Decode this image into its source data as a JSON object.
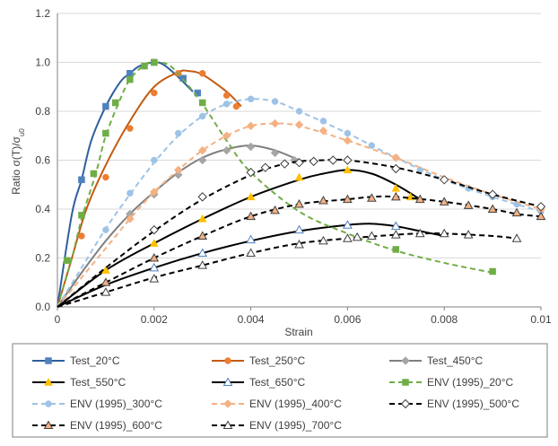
{
  "chart_data": {
    "type": "line",
    "xlabel": "Strain",
    "ylabel": "Ratio σ(T)/σu0",
    "xlim": [
      0,
      0.01
    ],
    "ylim": [
      0,
      1.2
    ],
    "x_ticks": [
      "0",
      "0.002",
      "0.004",
      "0.006",
      "0.008",
      "0.01"
    ],
    "y_ticks": [
      "0.0",
      "0.2",
      "0.4",
      "0.6",
      "0.8",
      "1.0",
      "1.2"
    ],
    "grid": "horizontal",
    "legend_position": "bottom",
    "series": [
      {
        "name": "Test_20°C",
        "color": "#2f5f9e",
        "dash": "solid",
        "marker": "square",
        "marker_fill": "#4f81bd",
        "points": [
          [
            0,
            0
          ],
          [
            0.0003,
            0.38
          ],
          [
            0.0005,
            0.52
          ],
          [
            0.0007,
            0.68
          ],
          [
            0.001,
            0.82
          ],
          [
            0.0013,
            0.92
          ],
          [
            0.0015,
            0.955
          ],
          [
            0.0017,
            0.985
          ],
          [
            0.002,
            1.0
          ],
          [
            0.0022,
            0.99
          ],
          [
            0.0025,
            0.94
          ],
          [
            0.0028,
            0.88
          ]
        ],
        "markers": [
          [
            0.0005,
            0.52
          ],
          [
            0.001,
            0.82
          ],
          [
            0.0015,
            0.955
          ],
          [
            0.002,
            1.0
          ],
          [
            0.0026,
            0.935
          ],
          [
            0.0029,
            0.875
          ]
        ]
      },
      {
        "name": "Test_250°C",
        "color": "#c55a11",
        "dash": "solid",
        "marker": "circle",
        "marker_fill": "#ed7d31",
        "points": [
          [
            0,
            0
          ],
          [
            0.0003,
            0.2
          ],
          [
            0.0006,
            0.4
          ],
          [
            0.001,
            0.58
          ],
          [
            0.0015,
            0.76
          ],
          [
            0.002,
            0.9
          ],
          [
            0.0025,
            0.96
          ],
          [
            0.0027,
            0.965
          ],
          [
            0.003,
            0.95
          ],
          [
            0.0035,
            0.88
          ],
          [
            0.0038,
            0.82
          ]
        ],
        "markers": [
          [
            0.0005,
            0.29
          ],
          [
            0.001,
            0.53
          ],
          [
            0.0015,
            0.73
          ],
          [
            0.002,
            0.875
          ],
          [
            0.0025,
            0.955
          ],
          [
            0.003,
            0.955
          ],
          [
            0.0035,
            0.865
          ],
          [
            0.0037,
            0.82
          ]
        ]
      },
      {
        "name": "Test_450°C",
        "color": "#7f7f7f",
        "dash": "solid",
        "marker": "diamond",
        "marker_fill": "#a5a5a5",
        "points": [
          [
            0,
            0
          ],
          [
            0.0005,
            0.14
          ],
          [
            0.001,
            0.27
          ],
          [
            0.0015,
            0.38
          ],
          [
            0.002,
            0.47
          ],
          [
            0.0025,
            0.55
          ],
          [
            0.003,
            0.61
          ],
          [
            0.0035,
            0.645
          ],
          [
            0.004,
            0.66
          ],
          [
            0.0045,
            0.64
          ],
          [
            0.005,
            0.6
          ]
        ],
        "markers": [
          [
            0.0015,
            0.38
          ],
          [
            0.002,
            0.46
          ],
          [
            0.0025,
            0.54
          ],
          [
            0.003,
            0.6
          ],
          [
            0.0035,
            0.64
          ],
          [
            0.004,
            0.655
          ],
          [
            0.0045,
            0.63
          ],
          [
            0.0049,
            0.6
          ]
        ]
      },
      {
        "name": "Test_550°C",
        "color": "#000000",
        "dash": "solid",
        "marker": "triangle",
        "marker_fill": "#ffc000",
        "points": [
          [
            0,
            0
          ],
          [
            0.001,
            0.15
          ],
          [
            0.002,
            0.26
          ],
          [
            0.003,
            0.36
          ],
          [
            0.004,
            0.45
          ],
          [
            0.005,
            0.52
          ],
          [
            0.0055,
            0.545
          ],
          [
            0.006,
            0.56
          ],
          [
            0.0065,
            0.545
          ],
          [
            0.007,
            0.5
          ],
          [
            0.0075,
            0.44
          ]
        ],
        "markers": [
          [
            0.001,
            0.15
          ],
          [
            0.002,
            0.26
          ],
          [
            0.003,
            0.36
          ],
          [
            0.004,
            0.45
          ],
          [
            0.005,
            0.53
          ],
          [
            0.006,
            0.56
          ],
          [
            0.007,
            0.485
          ],
          [
            0.0073,
            0.45
          ]
        ]
      },
      {
        "name": "Test_650°C",
        "color": "#000000",
        "dash": "solid",
        "marker": "triangle",
        "marker_fill": "#ffffff",
        "marker_stroke": "#4f81bd",
        "points": [
          [
            0,
            0
          ],
          [
            0.001,
            0.09
          ],
          [
            0.002,
            0.16
          ],
          [
            0.003,
            0.22
          ],
          [
            0.004,
            0.27
          ],
          [
            0.005,
            0.31
          ],
          [
            0.006,
            0.335
          ],
          [
            0.0065,
            0.34
          ],
          [
            0.007,
            0.33
          ],
          [
            0.0075,
            0.31
          ],
          [
            0.008,
            0.29
          ]
        ],
        "markers": [
          [
            0.002,
            0.16
          ],
          [
            0.003,
            0.22
          ],
          [
            0.004,
            0.275
          ],
          [
            0.005,
            0.315
          ],
          [
            0.006,
            0.335
          ],
          [
            0.007,
            0.33
          ]
        ]
      },
      {
        "name": "ENV (1995)_20°C",
        "color": "#70ad47",
        "dash": "dashed",
        "marker": "square",
        "marker_fill": "#70ad47",
        "points": [
          [
            0,
            0
          ],
          [
            0.0003,
            0.2
          ],
          [
            0.0005,
            0.36
          ],
          [
            0.0008,
            0.55
          ],
          [
            0.001,
            0.7
          ],
          [
            0.0013,
            0.85
          ],
          [
            0.0015,
            0.93
          ],
          [
            0.0018,
            0.99
          ],
          [
            0.002,
            1.0
          ],
          [
            0.0023,
            0.99
          ],
          [
            0.0026,
            0.93
          ],
          [
            0.003,
            0.83
          ],
          [
            0.0035,
            0.68
          ],
          [
            0.004,
            0.55
          ],
          [
            0.005,
            0.39
          ],
          [
            0.006,
            0.3
          ],
          [
            0.007,
            0.23
          ],
          [
            0.008,
            0.18
          ],
          [
            0.009,
            0.14
          ]
        ],
        "markers": [
          [
            0.0002,
            0.19
          ],
          [
            0.0005,
            0.375
          ],
          [
            0.00075,
            0.545
          ],
          [
            0.001,
            0.71
          ],
          [
            0.0012,
            0.835
          ],
          [
            0.0015,
            0.93
          ],
          [
            0.0018,
            0.985
          ],
          [
            0.002,
            1.0
          ],
          [
            0.003,
            0.835
          ],
          [
            0.007,
            0.235
          ],
          [
            0.009,
            0.145
          ]
        ]
      },
      {
        "name": "ENV (1995)_300°C",
        "color": "#9dc3e6",
        "dash": "dashed",
        "marker": "circle",
        "marker_fill": "#9dc3e6",
        "points": [
          [
            0,
            0
          ],
          [
            0.0005,
            0.16
          ],
          [
            0.001,
            0.32
          ],
          [
            0.0015,
            0.46
          ],
          [
            0.002,
            0.59
          ],
          [
            0.0025,
            0.7
          ],
          [
            0.003,
            0.78
          ],
          [
            0.0035,
            0.83
          ],
          [
            0.004,
            0.85
          ],
          [
            0.0045,
            0.84
          ],
          [
            0.005,
            0.8
          ],
          [
            0.006,
            0.71
          ],
          [
            0.007,
            0.61
          ],
          [
            0.008,
            0.52
          ],
          [
            0.009,
            0.45
          ],
          [
            0.01,
            0.39
          ]
        ],
        "markers": [
          [
            0.001,
            0.315
          ],
          [
            0.0015,
            0.465
          ],
          [
            0.002,
            0.6
          ],
          [
            0.0025,
            0.71
          ],
          [
            0.003,
            0.78
          ],
          [
            0.0035,
            0.83
          ],
          [
            0.004,
            0.85
          ],
          [
            0.0045,
            0.84
          ],
          [
            0.005,
            0.8
          ],
          [
            0.0055,
            0.76
          ],
          [
            0.006,
            0.71
          ],
          [
            0.0065,
            0.66
          ],
          [
            0.007,
            0.61
          ],
          [
            0.0075,
            0.56
          ],
          [
            0.008,
            0.52
          ],
          [
            0.0085,
            0.485
          ],
          [
            0.009,
            0.45
          ],
          [
            0.0095,
            0.42
          ],
          [
            0.01,
            0.39
          ]
        ]
      },
      {
        "name": "ENV (1995)_400°C",
        "color": "#f4b183",
        "dash": "dashed",
        "marker": "diamond",
        "marker_fill": "#f4b183",
        "points": [
          [
            0,
            0
          ],
          [
            0.001,
            0.24
          ],
          [
            0.0015,
            0.36
          ],
          [
            0.002,
            0.47
          ],
          [
            0.0025,
            0.56
          ],
          [
            0.003,
            0.64
          ],
          [
            0.0035,
            0.7
          ],
          [
            0.004,
            0.74
          ],
          [
            0.0045,
            0.75
          ],
          [
            0.005,
            0.74
          ],
          [
            0.006,
            0.68
          ],
          [
            0.007,
            0.61
          ],
          [
            0.008,
            0.53
          ],
          [
            0.009,
            0.46
          ],
          [
            0.01,
            0.4
          ]
        ],
        "markers": [
          [
            0.0015,
            0.36
          ],
          [
            0.002,
            0.47
          ],
          [
            0.0025,
            0.56
          ],
          [
            0.003,
            0.64
          ],
          [
            0.0035,
            0.7
          ],
          [
            0.004,
            0.74
          ],
          [
            0.0045,
            0.75
          ],
          [
            0.005,
            0.745
          ],
          [
            0.0055,
            0.72
          ],
          [
            0.006,
            0.68
          ],
          [
            0.007,
            0.61
          ],
          [
            0.008,
            0.52
          ],
          [
            0.009,
            0.46
          ],
          [
            0.01,
            0.4
          ]
        ]
      },
      {
        "name": "ENV (1995)_500°C",
        "color": "#000000",
        "dash": "dashed",
        "marker": "diamond",
        "marker_fill": "#ffffff",
        "marker_stroke": "#404040",
        "points": [
          [
            0,
            0
          ],
          [
            0.001,
            0.16
          ],
          [
            0.002,
            0.31
          ],
          [
            0.003,
            0.44
          ],
          [
            0.004,
            0.54
          ],
          [
            0.0045,
            0.575
          ],
          [
            0.005,
            0.595
          ],
          [
            0.0055,
            0.6
          ],
          [
            0.006,
            0.6
          ],
          [
            0.007,
            0.57
          ],
          [
            0.008,
            0.52
          ],
          [
            0.009,
            0.46
          ],
          [
            0.01,
            0.41
          ]
        ],
        "markers": [
          [
            0.002,
            0.315
          ],
          [
            0.003,
            0.45
          ],
          [
            0.004,
            0.55
          ],
          [
            0.0043,
            0.57
          ],
          [
            0.0047,
            0.585
          ],
          [
            0.005,
            0.59
          ],
          [
            0.0053,
            0.595
          ],
          [
            0.0057,
            0.6
          ],
          [
            0.006,
            0.6
          ],
          [
            0.007,
            0.565
          ],
          [
            0.008,
            0.52
          ],
          [
            0.009,
            0.46
          ],
          [
            0.01,
            0.41
          ]
        ]
      },
      {
        "name": "ENV (1995)_600°C",
        "color": "#000000",
        "dash": "dashed",
        "marker": "triangle",
        "marker_fill": "#f4b183",
        "marker_stroke": "#404040",
        "points": [
          [
            0,
            0
          ],
          [
            0.001,
            0.1
          ],
          [
            0.002,
            0.2
          ],
          [
            0.003,
            0.29
          ],
          [
            0.004,
            0.37
          ],
          [
            0.005,
            0.42
          ],
          [
            0.006,
            0.44
          ],
          [
            0.0065,
            0.45
          ],
          [
            0.007,
            0.45
          ],
          [
            0.008,
            0.43
          ],
          [
            0.009,
            0.4
          ],
          [
            0.0095,
            0.38
          ],
          [
            0.01,
            0.37
          ]
        ],
        "markers": [
          [
            0.001,
            0.1
          ],
          [
            0.002,
            0.2
          ],
          [
            0.003,
            0.29
          ],
          [
            0.004,
            0.37
          ],
          [
            0.0045,
            0.395
          ],
          [
            0.005,
            0.42
          ],
          [
            0.0055,
            0.435
          ],
          [
            0.006,
            0.44
          ],
          [
            0.0065,
            0.445
          ],
          [
            0.007,
            0.45
          ],
          [
            0.0075,
            0.44
          ],
          [
            0.008,
            0.43
          ],
          [
            0.0085,
            0.415
          ],
          [
            0.009,
            0.4
          ],
          [
            0.0095,
            0.385
          ],
          [
            0.01,
            0.37
          ]
        ]
      },
      {
        "name": "ENV (1995)_700°C",
        "color": "#000000",
        "dash": "dashed",
        "marker": "triangle",
        "marker_fill": "#ffffff",
        "marker_stroke": "#404040",
        "points": [
          [
            0,
            0
          ],
          [
            0.001,
            0.06
          ],
          [
            0.002,
            0.12
          ],
          [
            0.003,
            0.17
          ],
          [
            0.004,
            0.22
          ],
          [
            0.005,
            0.26
          ],
          [
            0.006,
            0.28
          ],
          [
            0.007,
            0.295
          ],
          [
            0.0075,
            0.3
          ],
          [
            0.008,
            0.3
          ],
          [
            0.009,
            0.29
          ],
          [
            0.0095,
            0.28
          ]
        ],
        "markers": [
          [
            0.001,
            0.06
          ],
          [
            0.002,
            0.115
          ],
          [
            0.003,
            0.17
          ],
          [
            0.004,
            0.22
          ],
          [
            0.005,
            0.255
          ],
          [
            0.0055,
            0.27
          ],
          [
            0.006,
            0.28
          ],
          [
            0.0062,
            0.285
          ],
          [
            0.0065,
            0.29
          ],
          [
            0.007,
            0.295
          ],
          [
            0.0075,
            0.3
          ],
          [
            0.008,
            0.3
          ],
          [
            0.0085,
            0.295
          ],
          [
            0.0095,
            0.28
          ]
        ]
      }
    ]
  }
}
